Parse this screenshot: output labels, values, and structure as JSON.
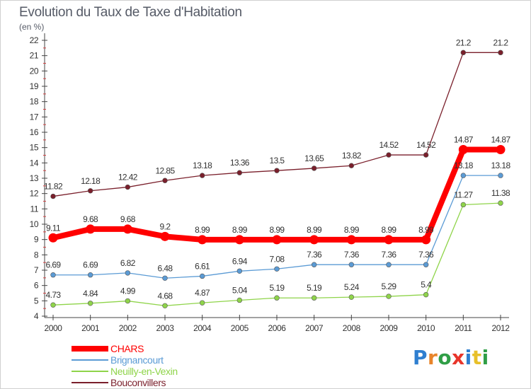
{
  "chart_data": {
    "type": "line",
    "title": "Evolution du Taux de Taxe d'Habitation",
    "unit_label": "(en %)",
    "x": [
      "2000",
      "2001",
      "2002",
      "2003",
      "2004",
      "2005",
      "2006",
      "2007",
      "2008",
      "2009",
      "2010",
      "2011",
      "2012"
    ],
    "ylim": [
      4,
      22
    ],
    "yticks": [
      4,
      5,
      6,
      7,
      8,
      9,
      10,
      11,
      12,
      13,
      14,
      15,
      16,
      17,
      18,
      19,
      20,
      21,
      22
    ],
    "grid": false,
    "legend_position": "bottom-left",
    "series": [
      {
        "name": "Bouconvillers",
        "color": "#7a1f2b",
        "values": [
          11.82,
          12.18,
          12.42,
          12.85,
          13.18,
          13.36,
          13.5,
          13.65,
          13.82,
          14.52,
          14.52,
          21.2,
          21.2
        ],
        "labels": [
          "11.82",
          "12.18",
          "12.42",
          "12.85",
          "13.18",
          "13.36",
          "13.5",
          "13.65",
          "13.82",
          "14.52",
          "14.52",
          "21.2",
          "21.2"
        ]
      },
      {
        "name": "Neuilly-en-Vexin",
        "color": "#8fd44a",
        "values": [
          4.73,
          4.84,
          4.99,
          4.68,
          4.87,
          5.04,
          5.19,
          5.19,
          5.24,
          5.29,
          5.4,
          11.27,
          11.38
        ],
        "labels": [
          "4.73",
          "4.84",
          "4.99",
          "4.68",
          "4.87",
          "5.04",
          "5.19",
          "5.19",
          "5.24",
          "5.29",
          "5.4",
          "11.27",
          "11.38"
        ]
      },
      {
        "name": "Brignancourt",
        "color": "#5b9bd5",
        "values": [
          6.69,
          6.69,
          6.82,
          6.48,
          6.61,
          6.94,
          7.08,
          7.36,
          7.36,
          7.36,
          7.36,
          13.18,
          13.18
        ],
        "labels": [
          "6.69",
          "6.69",
          "6.82",
          "6.48",
          "6.61",
          "6.94",
          "7.08",
          "7.36",
          "7.36",
          "7.36",
          "7.36",
          "13.18",
          "13.18"
        ]
      },
      {
        "name": "CHARS",
        "color": "#ff0000",
        "values": [
          9.11,
          9.68,
          9.68,
          9.2,
          8.99,
          8.99,
          8.99,
          8.99,
          8.99,
          8.99,
          8.99,
          14.87,
          14.87
        ],
        "labels": [
          "9.11",
          "9.68",
          "9.68",
          "9.2",
          "8.99",
          "8.99",
          "8.99",
          "8.99",
          "8.99",
          "8.99",
          "8.99",
          "14.87",
          "14.87"
        ]
      }
    ],
    "legend": [
      {
        "name": "CHARS",
        "color": "#ff0000"
      },
      {
        "name": "Brignancourt",
        "color": "#5b9bd5"
      },
      {
        "name": "Neuilly-en-Vexin",
        "color": "#8fd44a"
      },
      {
        "name": "Bouconvillers",
        "color": "#7a1f2b"
      }
    ]
  },
  "logo": {
    "letters": [
      "P",
      "r",
      "o",
      "x",
      "i",
      "t",
      "i"
    ],
    "colors": [
      "#2f7fd0",
      "#e8842a",
      "#2f9e46",
      "#e8352a",
      "#2f7fd0",
      "#e8c02a",
      "#2f9e46"
    ]
  }
}
